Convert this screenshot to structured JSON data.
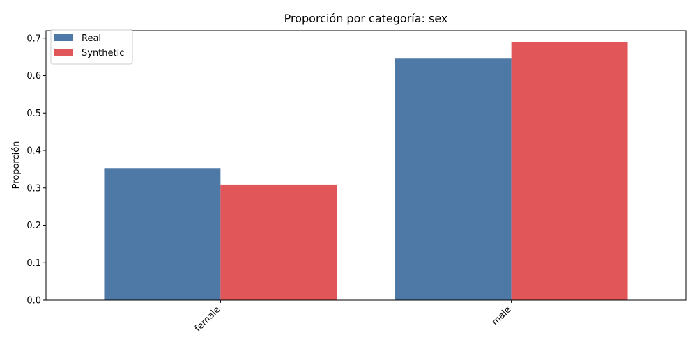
{
  "chart_data": {
    "type": "bar",
    "title": "Proporción por categoría: sex",
    "xlabel": "",
    "ylabel": "Proporción",
    "categories": [
      "female",
      "male"
    ],
    "series": [
      {
        "name": "Real",
        "values": [
          0.353,
          0.647
        ],
        "color": "#4e79a7"
      },
      {
        "name": "Synthetic",
        "values": [
          0.309,
          0.69
        ],
        "color": "#e15759"
      }
    ],
    "ylim": [
      0,
      0.72
    ],
    "yticks": [
      0.0,
      0.1,
      0.2,
      0.3,
      0.4,
      0.5,
      0.6,
      0.7
    ],
    "ytick_labels": [
      "0.0",
      "0.1",
      "0.2",
      "0.3",
      "0.4",
      "0.5",
      "0.6",
      "0.7"
    ],
    "grid": false,
    "legend_position": "top-left"
  }
}
